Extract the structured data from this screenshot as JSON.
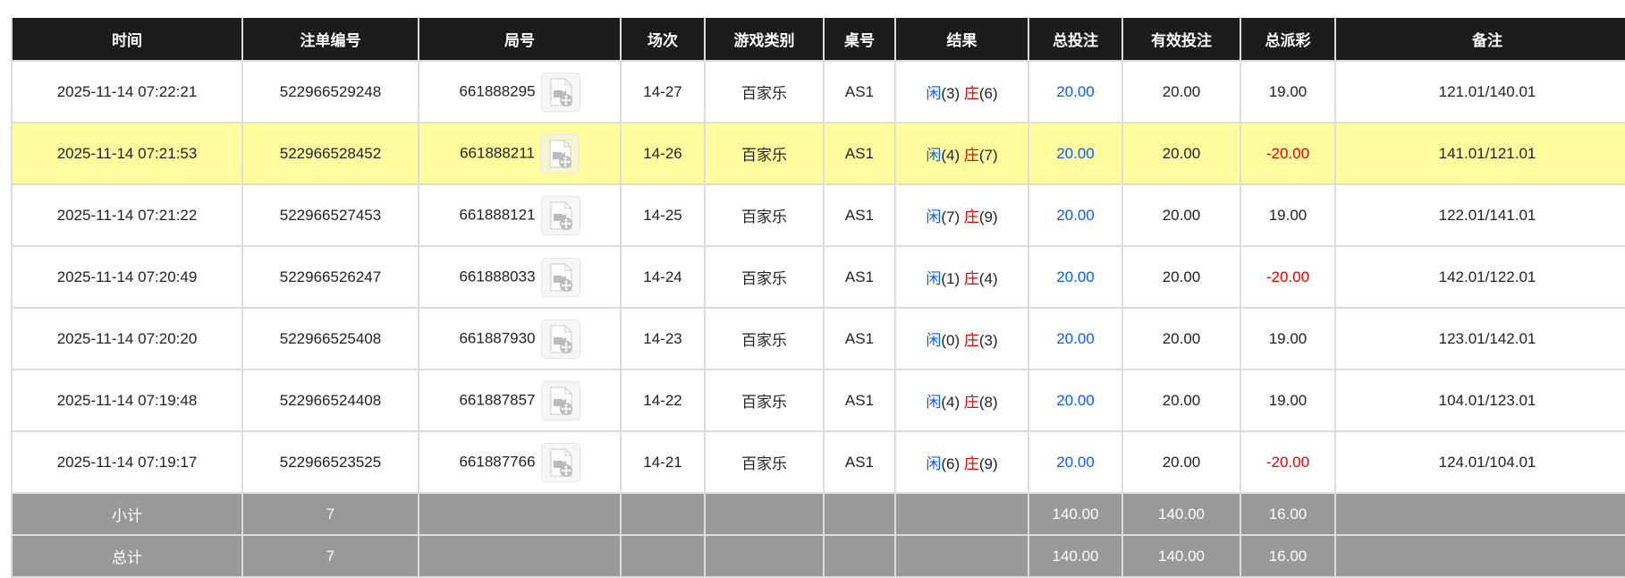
{
  "headers": [
    "时间",
    "注单编号",
    "局号",
    "场次",
    "游戏类别",
    "桌号",
    "结果",
    "总投注",
    "有效投注",
    "总派彩",
    "备注"
  ],
  "rows": [
    {
      "time": "2025-11-14 07:22:21",
      "bet_id": "522966529248",
      "round": "661888295",
      "session": "14-27",
      "game": "百家乐",
      "table": "AS1",
      "player_label": "闲",
      "player": "(3)",
      "banker_label": "庄",
      "banker": "(6)",
      "total": "20.00",
      "valid": "20.00",
      "payout": "19.00",
      "note": "121.01/140.01"
    },
    {
      "time": "2025-11-14 07:21:53",
      "bet_id": "522966528452",
      "round": "661888211",
      "session": "14-26",
      "game": "百家乐",
      "table": "AS1",
      "player_label": "闲",
      "player": "(4)",
      "banker_label": "庄",
      "banker": "(7)",
      "total": "20.00",
      "valid": "20.00",
      "payout": "-20.00",
      "note": "141.01/121.01"
    },
    {
      "time": "2025-11-14 07:21:22",
      "bet_id": "522966527453",
      "round": "661888121",
      "session": "14-25",
      "game": "百家乐",
      "table": "AS1",
      "player_label": "闲",
      "player": "(7)",
      "banker_label": "庄",
      "banker": "(9)",
      "total": "20.00",
      "valid": "20.00",
      "payout": "19.00",
      "note": "122.01/141.01"
    },
    {
      "time": "2025-11-14 07:20:49",
      "bet_id": "522966526247",
      "round": "661888033",
      "session": "14-24",
      "game": "百家乐",
      "table": "AS1",
      "player_label": "闲",
      "player": "(1)",
      "banker_label": "庄",
      "banker": "(4)",
      "total": "20.00",
      "valid": "20.00",
      "payout": "-20.00",
      "note": "142.01/122.01"
    },
    {
      "time": "2025-11-14 07:20:20",
      "bet_id": "522966525408",
      "round": "661887930",
      "session": "14-23",
      "game": "百家乐",
      "table": "AS1",
      "player_label": "闲",
      "player": "(0)",
      "banker_label": "庄",
      "banker": "(3)",
      "total": "20.00",
      "valid": "20.00",
      "payout": "19.00",
      "note": "123.01/142.01"
    },
    {
      "time": "2025-11-14 07:19:48",
      "bet_id": "522966524408",
      "round": "661887857",
      "session": "14-22",
      "game": "百家乐",
      "table": "AS1",
      "player_label": "闲",
      "player": "(4)",
      "banker_label": "庄",
      "banker": "(8)",
      "total": "20.00",
      "valid": "20.00",
      "payout": "19.00",
      "note": "104.01/123.01"
    },
    {
      "time": "2025-11-14 07:19:17",
      "bet_id": "522966523525",
      "round": "661887766",
      "session": "14-21",
      "game": "百家乐",
      "table": "AS1",
      "player_label": "闲",
      "player": "(6)",
      "banker_label": "庄",
      "banker": "(9)",
      "total": "20.00",
      "valid": "20.00",
      "payout": "-20.00",
      "note": "124.01/104.01"
    }
  ],
  "highlighted_row": 1,
  "subtotal": {
    "label": "小计",
    "count": "7",
    "total": "140.00",
    "valid": "140.00",
    "payout": "16.00"
  },
  "grand_total": {
    "label": "总计",
    "count": "7",
    "total": "140.00",
    "valid": "140.00",
    "payout": "16.00"
  },
  "icons": {
    "replay": "video-file-icon"
  },
  "colors": {
    "header": "#1c1c1c",
    "highlight": "#fffd9e",
    "summary": "#999999",
    "blue": "#0a5eff",
    "red": "#f00000"
  }
}
